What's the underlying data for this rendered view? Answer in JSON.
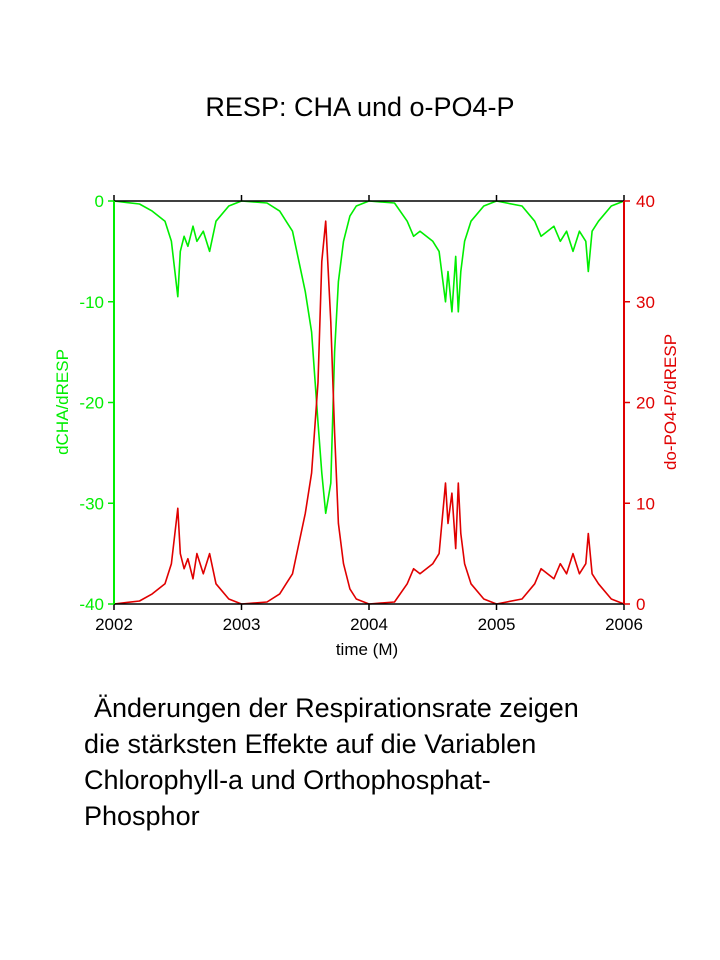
{
  "slide": {
    "title": "RESP: CHA und o-PO4-P",
    "caption_lines": [
      "Änderungen der Respirationsrate zeigen",
      "die stärksten Effekte auf die Variablen",
      "Chlorophyll-a und Orthophosphat-",
      "Phosphor"
    ]
  },
  "colors": {
    "left_series": "#00ee00",
    "right_series": "#e00000",
    "axis": "#000000"
  },
  "chart_data": {
    "type": "line",
    "xlabel": "time (M)",
    "xlim": [
      2002,
      2006
    ],
    "x_ticks": [
      "2002",
      "2003",
      "2004",
      "2005",
      "2006"
    ],
    "y_left": {
      "label": "dCHA/dRESP",
      "lim": [
        -40,
        0
      ],
      "ticks": [
        "0",
        "-10",
        "-20",
        "-30",
        "-40"
      ]
    },
    "y_right": {
      "label": "do-PO4-P/dRESP",
      "lim": [
        0,
        40
      ],
      "ticks": [
        "40",
        "30",
        "20",
        "10",
        "0"
      ]
    },
    "series": [
      {
        "axis": "left",
        "color": "#00ee00",
        "x": [
          2002.0,
          2002.2,
          2002.3,
          2002.4,
          2002.45,
          2002.5,
          2002.52,
          2002.55,
          2002.58,
          2002.62,
          2002.65,
          2002.7,
          2002.75,
          2002.8,
          2002.9,
          2003.0,
          2003.2,
          2003.3,
          2003.35,
          2003.4,
          2003.45,
          2003.5,
          2003.55,
          2003.6,
          2003.63,
          2003.66,
          2003.7,
          2003.73,
          2003.76,
          2003.8,
          2003.85,
          2003.9,
          2004.0,
          2004.2,
          2004.3,
          2004.35,
          2004.4,
          2004.5,
          2004.55,
          2004.6,
          2004.62,
          2004.65,
          2004.68,
          2004.7,
          2004.72,
          2004.75,
          2004.8,
          2004.9,
          2005.0,
          2005.2,
          2005.3,
          2005.35,
          2005.4,
          2005.45,
          2005.5,
          2005.55,
          2005.6,
          2005.65,
          2005.7,
          2005.72,
          2005.75,
          2005.8,
          2005.9,
          2006.0
        ],
        "y": [
          0,
          -0.3,
          -1,
          -2,
          -4,
          -9.5,
          -5,
          -3.5,
          -4.5,
          -2.5,
          -4,
          -3,
          -5,
          -2,
          -0.5,
          0,
          -0.2,
          -1,
          -2,
          -3,
          -6,
          -9,
          -13,
          -22,
          -27,
          -31,
          -28,
          -15,
          -8,
          -4,
          -1.5,
          -0.5,
          0,
          -0.2,
          -2,
          -3.5,
          -3,
          -4,
          -5,
          -10,
          -7,
          -11,
          -5.5,
          -11,
          -7,
          -4,
          -2,
          -0.5,
          0,
          -0.5,
          -2,
          -3.5,
          -3,
          -2.5,
          -4,
          -3,
          -5,
          -3,
          -4,
          -7,
          -3,
          -2,
          -0.5,
          0
        ]
      },
      {
        "axis": "right",
        "color": "#e00000",
        "x": [
          2002.0,
          2002.2,
          2002.3,
          2002.4,
          2002.45,
          2002.5,
          2002.52,
          2002.55,
          2002.58,
          2002.62,
          2002.65,
          2002.7,
          2002.75,
          2002.8,
          2002.9,
          2003.0,
          2003.2,
          2003.3,
          2003.35,
          2003.4,
          2003.45,
          2003.5,
          2003.55,
          2003.6,
          2003.63,
          2003.66,
          2003.7,
          2003.73,
          2003.76,
          2003.8,
          2003.85,
          2003.9,
          2004.0,
          2004.2,
          2004.3,
          2004.35,
          2004.4,
          2004.5,
          2004.55,
          2004.6,
          2004.62,
          2004.65,
          2004.68,
          2004.7,
          2004.72,
          2004.75,
          2004.8,
          2004.9,
          2005.0,
          2005.2,
          2005.3,
          2005.35,
          2005.4,
          2005.45,
          2005.5,
          2005.55,
          2005.6,
          2005.65,
          2005.7,
          2005.72,
          2005.75,
          2005.8,
          2005.9,
          2006.0
        ],
        "y": [
          0,
          0.3,
          1,
          2,
          4,
          9.5,
          5,
          3.5,
          4.5,
          2.5,
          5,
          3,
          5,
          2,
          0.5,
          0,
          0.2,
          1,
          2,
          3,
          6,
          9,
          13,
          22,
          34,
          38,
          28,
          17,
          8,
          4,
          1.5,
          0.5,
          0,
          0.2,
          2,
          3.5,
          3,
          4,
          5,
          12,
          8,
          11,
          5.5,
          12,
          7,
          4,
          2,
          0.5,
          0,
          0.5,
          2,
          3.5,
          3,
          2.5,
          4,
          3,
          5,
          3,
          4,
          7,
          3,
          2,
          0.5,
          0
        ]
      }
    ]
  }
}
